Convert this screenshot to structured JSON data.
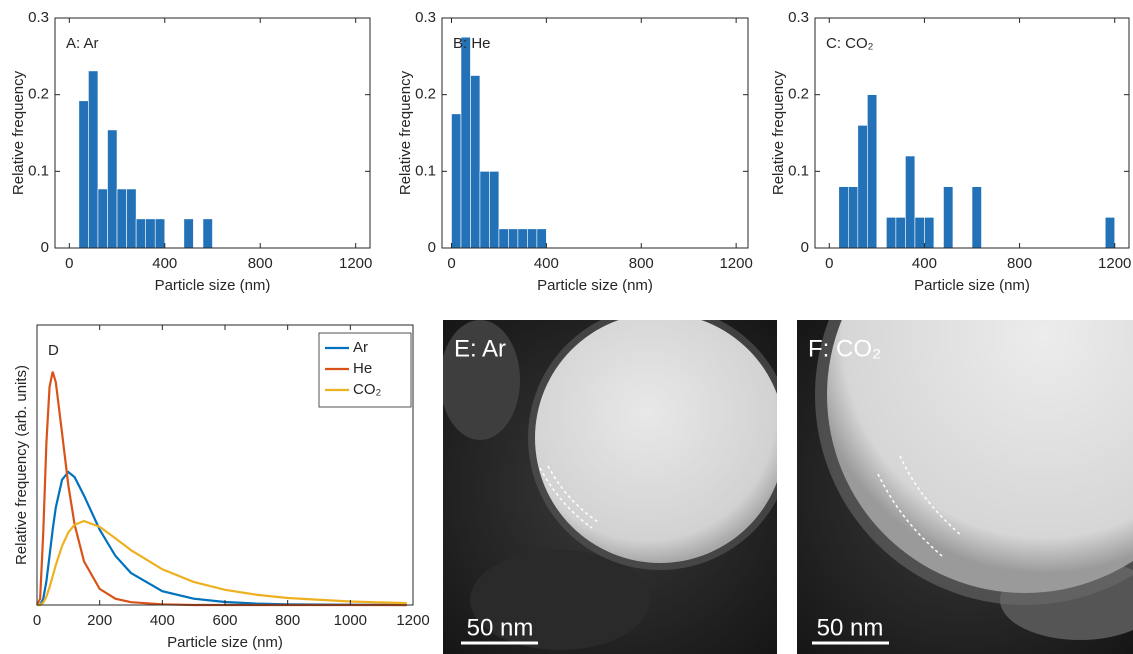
{
  "chart_data": [
    {
      "type": "histogram",
      "title": "A: Ar",
      "xlabel": "Particle size (nm)",
      "ylabel": "Relative frequency",
      "color": "#2372b8",
      "bins": [
        40,
        80,
        120,
        160,
        200,
        240,
        280,
        320,
        360,
        400,
        440,
        480,
        520,
        560,
        600
      ],
      "values": [
        0.192,
        0.231,
        0.077,
        0.154,
        0.077,
        0.077,
        0.038,
        0.038,
        0.038,
        0,
        0,
        0.038,
        0,
        0.038
      ],
      "xlim": [
        -60,
        1260
      ],
      "xticks": [
        0,
        400,
        800,
        1200
      ],
      "ylim": [
        0,
        0.3
      ],
      "yticks": [
        0,
        0.1,
        0.2,
        0.3
      ]
    },
    {
      "type": "histogram",
      "title": "B: He",
      "xlabel": "Particle size (nm)",
      "ylabel": "Relative frequency",
      "color": "#2372b8",
      "bins": [
        0,
        40,
        80,
        120,
        160,
        200,
        240,
        280,
        320,
        360,
        400
      ],
      "values": [
        0.175,
        0.275,
        0.225,
        0.1,
        0.1,
        0.025,
        0.025,
        0.025,
        0.025,
        0.025
      ],
      "xlim": [
        -40,
        1250
      ],
      "xticks": [
        0,
        400,
        800,
        1200
      ],
      "ylim": [
        0,
        0.3
      ],
      "yticks": [
        0,
        0.1,
        0.2,
        0.3
      ]
    },
    {
      "type": "histogram",
      "title": "C: CO₂",
      "xlabel": "Particle size (nm)",
      "ylabel": "Relative frequency",
      "color": "#2372b8",
      "bins": [
        40,
        80,
        120,
        160,
        200,
        240,
        280,
        320,
        360,
        400,
        440,
        480,
        520,
        560,
        600,
        640,
        680,
        720,
        760,
        800,
        840,
        880,
        920,
        960,
        1000,
        1040,
        1080,
        1120,
        1160,
        1200
      ],
      "values": [
        0.08,
        0.08,
        0.16,
        0.2,
        0,
        0.04,
        0.04,
        0.12,
        0.04,
        0.04,
        0,
        0.08,
        0,
        0,
        0.08,
        0,
        0,
        0,
        0,
        0,
        0,
        0,
        0,
        0,
        0,
        0,
        0,
        0,
        0.04
      ],
      "xlim": [
        -60,
        1260
      ],
      "xticks": [
        0,
        400,
        800,
        1200
      ],
      "ylim": [
        0,
        0.3
      ],
      "yticks": [
        0,
        0.1,
        0.2,
        0.3
      ]
    },
    {
      "type": "line",
      "title": "D",
      "xlabel": "Particle size (nm)",
      "ylabel": "Relative frequency (arb. units)",
      "legend": "upper right",
      "x": [
        0,
        10,
        20,
        30,
        40,
        50,
        60,
        80,
        100,
        120,
        150,
        200,
        250,
        300,
        400,
        500,
        600,
        700,
        800,
        1000,
        1180
      ],
      "series": [
        {
          "name": "Ar",
          "color": "#0072bd",
          "values": [
            0,
            0.001,
            0.027,
            0.102,
            0.211,
            0.323,
            0.418,
            0.537,
            0.57,
            0.548,
            0.469,
            0.323,
            0.211,
            0.137,
            0.059,
            0.027,
            0.013,
            0.006,
            0.003,
            0.001,
            0
          ]
        },
        {
          "name": "He",
          "color": "#d95319",
          "values": [
            0,
            0.027,
            0.312,
            0.695,
            0.934,
            1,
            0.955,
            0.736,
            0.513,
            0.345,
            0.187,
            0.069,
            0.027,
            0.012,
            0.003,
            0,
            0,
            0,
            0,
            0,
            0
          ]
        },
        {
          "name": "CO₂",
          "color": "#edb120",
          "values": [
            0,
            0,
            0.01,
            0.036,
            0.076,
            0.123,
            0.171,
            0.253,
            0.311,
            0.344,
            0.36,
            0.335,
            0.286,
            0.235,
            0.153,
            0.099,
            0.065,
            0.044,
            0.03,
            0.015,
            0.008
          ]
        }
      ],
      "xlim": [
        0,
        1200
      ],
      "xticks": [
        0,
        200,
        400,
        600,
        800,
        1000,
        1200
      ],
      "ylim": [
        0,
        1.2
      ]
    }
  ],
  "images": [
    {
      "label": "E: Ar",
      "scale_bar": "50 nm"
    },
    {
      "label": "F: CO₂",
      "scale_bar": "50 nm"
    }
  ]
}
